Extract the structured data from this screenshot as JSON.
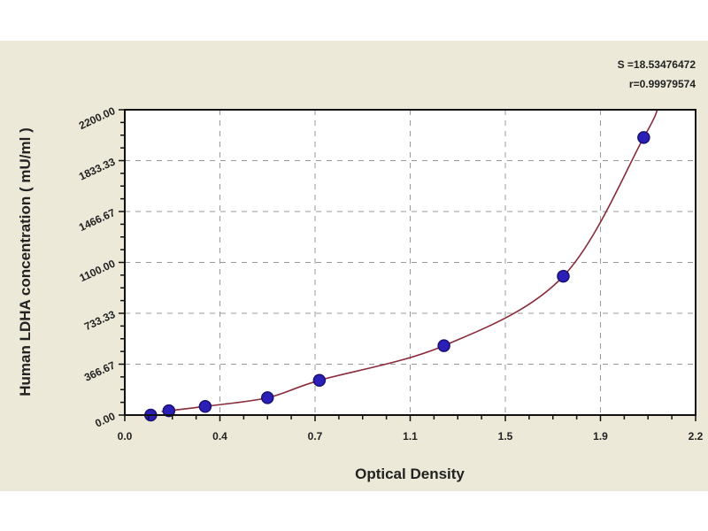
{
  "chart_data": {
    "type": "scatter",
    "title": "",
    "xlabel": "Optical Density",
    "ylabel": "Human LDHA concentration ( mU/ml )",
    "xlim": [
      0.0,
      2.2
    ],
    "ylim": [
      0.0,
      2200.0
    ],
    "x_ticks": [
      "0.0",
      "0.4",
      "0.7",
      "1.1",
      "1.5",
      "1.9",
      "2.2"
    ],
    "y_ticks": [
      "0.00",
      "366.67",
      "733.33",
      "1100.00",
      "1466.67",
      "1833.33",
      "2200.00"
    ],
    "grid": true,
    "grid_style": "dashed",
    "points": {
      "x": [
        0.1,
        0.17,
        0.31,
        0.55,
        0.75,
        1.23,
        1.69,
        2.0
      ],
      "y": [
        0,
        31.25,
        62.5,
        125,
        250,
        500,
        1000,
        2000
      ]
    },
    "fit_curve": true,
    "annotations": [
      "S =18.53476472",
      "r=0.99979574"
    ],
    "colors": {
      "points": "#2b1fb8",
      "point_edge": "#1a1070",
      "curve": "#8a2a3a",
      "background": "#ece9d8",
      "plot_bg": "#ffffff"
    }
  }
}
